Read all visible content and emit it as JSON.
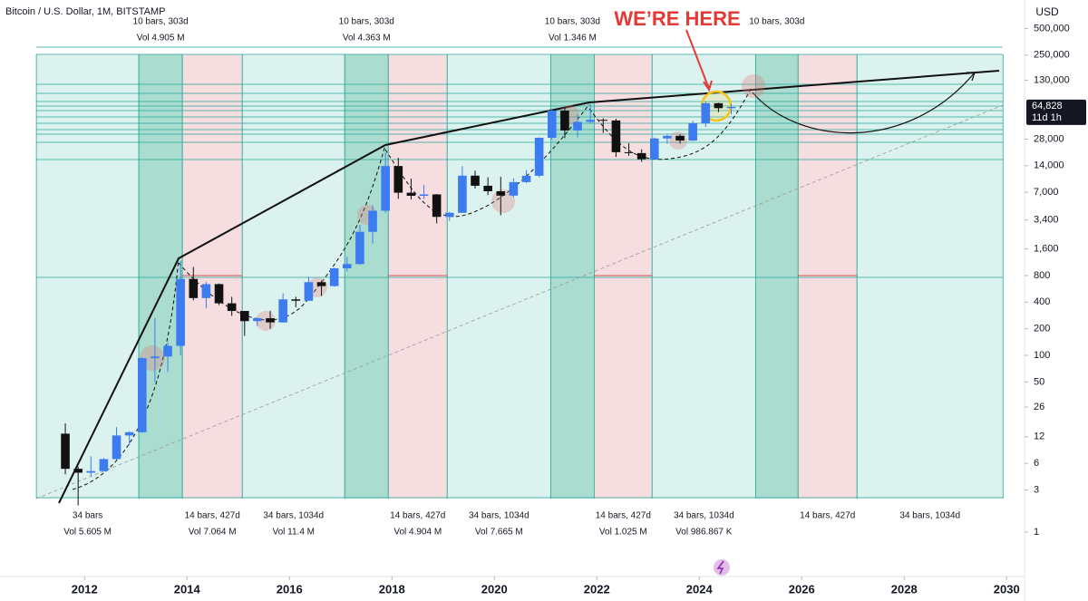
{
  "chart_data": {
    "type": "candlestick",
    "title": "Bitcoin / U.S. Dollar, 1M, BITSTAMP",
    "currency": "USD",
    "annotation": "WE’RE HERE",
    "log_scale": true,
    "grid": false,
    "up_color": "#3d7cf0",
    "down_color": "#111111",
    "xlim": [
      2010.35,
      2030.35
    ],
    "xticks": [
      2012,
      2014,
      2016,
      2018,
      2020,
      2022,
      2024,
      2026,
      2028,
      2030
    ],
    "ylim": [
      0.362,
      1050000
    ],
    "yticks": [
      {
        "value": 500000,
        "label": "500,000"
      },
      {
        "value": 250000,
        "label": "250,000"
      },
      {
        "value": 130000,
        "label": "130,000"
      },
      {
        "value": 28000,
        "label": "28,000"
      },
      {
        "value": 14000,
        "label": "14,000"
      },
      {
        "value": 7000,
        "label": "7,000"
      },
      {
        "value": 3400,
        "label": "3,400"
      },
      {
        "value": 1600,
        "label": "1,600"
      },
      800,
      400,
      200,
      100,
      50,
      26,
      12,
      6,
      3,
      1
    ],
    "last_price": {
      "value": 64828,
      "label": "64,828",
      "countdown": "11d 1h"
    },
    "ranges": [
      {
        "start": 2011.06,
        "end": 2013.06,
        "color": "#dcf2ee",
        "label": "34 bars",
        "volume": "Vol 5.605 M"
      },
      {
        "start": 2013.06,
        "end": 2013.91,
        "color": "#aadccf",
        "label": "10 bars, 303d",
        "volume": "Vol 4.905 M"
      },
      {
        "start": 2013.91,
        "end": 2015.08,
        "color": "#f5dde0",
        "label": "14 bars, 427d",
        "volume": "Vol 7.064 M"
      },
      {
        "start": 2015.08,
        "end": 2017.08,
        "color": "#dcf2ee",
        "label": "34 bars, 1034d",
        "volume": "Vol 11.4 M"
      },
      {
        "start": 2017.08,
        "end": 2017.93,
        "color": "#aadccf",
        "label": "10 bars, 303d",
        "volume": "Vol 4.363 M"
      },
      {
        "start": 2017.93,
        "end": 2019.08,
        "color": "#f5dde0",
        "label": "14 bars, 427d",
        "volume": "Vol 4.904 M"
      },
      {
        "start": 2019.08,
        "end": 2021.1,
        "color": "#dcf2ee",
        "label": "34 bars, 1034d",
        "volume": "Vol 7.665 M"
      },
      {
        "start": 2021.1,
        "end": 2021.95,
        "color": "#aadccf",
        "label": "10 bars, 303d",
        "volume": "Vol 1.346 M"
      },
      {
        "start": 2021.95,
        "end": 2023.08,
        "color": "#f5dde0",
        "label": "14 bars, 427d",
        "volume": "Vol 1.025 M"
      },
      {
        "start": 2023.08,
        "end": 2025.1,
        "color": "#dcf2ee",
        "label": "34 bars, 1034d",
        "volume": "Vol 986.867 K"
      },
      {
        "start": 2025.1,
        "end": 2025.93,
        "color": "#aadccf",
        "label": "10 bars, 303d"
      },
      {
        "start": 2025.93,
        "end": 2027.08,
        "color": "#f5dde0",
        "label": "14 bars, 427d"
      },
      {
        "start": 2027.08,
        "end": 2029.93,
        "color": "#dcf2ee",
        "label": "34 bars, 1034d"
      }
    ],
    "x": [
      2011.625,
      2011.875,
      2012.125,
      2012.375,
      2012.625,
      2012.875,
      2013.125,
      2013.375,
      2013.625,
      2013.875,
      2014.125,
      2014.375,
      2014.625,
      2014.875,
      2015.125,
      2015.375,
      2015.625,
      2015.875,
      2016.125,
      2016.375,
      2016.625,
      2016.875,
      2017.125,
      2017.375,
      2017.625,
      2017.875,
      2018.125,
      2018.375,
      2018.625,
      2018.875,
      2019.125,
      2019.375,
      2019.625,
      2019.875,
      2020.125,
      2020.375,
      2020.625,
      2020.875,
      2021.125,
      2021.375,
      2021.625,
      2021.875,
      2022.125,
      2022.375,
      2022.625,
      2022.875,
      2023.125,
      2023.375,
      2023.625,
      2023.875,
      2024.125,
      2024.375,
      2024.625
    ],
    "open": [
      13,
      5.2,
      4.7,
      4.9,
      6.7,
      12.4,
      13.5,
      93,
      97,
      128,
      732,
      445,
      640,
      388,
      318,
      244,
      263,
      236,
      430,
      415,
      673,
      608,
      966,
      1080,
      2500,
      4330,
      13880,
      6925,
      6390,
      6625,
      3690,
      4100,
      10800,
      8300,
      7190,
      6420,
      9135,
      10780,
      28990,
      58800,
      35040,
      43820,
      46200,
      45500,
      19900,
      19430,
      16540,
      28470,
      30470,
      26970,
      42270,
      71300,
      62700
    ],
    "high": [
      17,
      5.5,
      7.2,
      6.9,
      15.4,
      13.8,
      95,
      266,
      140,
      1163,
      1000,
      680,
      650,
      460,
      318,
      270,
      320,
      505,
      460,
      780,
      700,
      980,
      1300,
      3000,
      5000,
      19666,
      17200,
      10000,
      8500,
      6700,
      4200,
      13880,
      12300,
      10350,
      10500,
      10070,
      12470,
      29300,
      61780,
      64900,
      52900,
      69000,
      48200,
      47500,
      25200,
      21500,
      29200,
      31450,
      31800,
      45000,
      73800,
      72000,
      70000
    ],
    "low": [
      4.5,
      2.0,
      4.3,
      4.9,
      6.6,
      9.6,
      13.3,
      50,
      65,
      100,
      420,
      340,
      370,
      280,
      166,
      215,
      200,
      235,
      350,
      415,
      470,
      600,
      890,
      1060,
      1840,
      4100,
      5900,
      5800,
      5860,
      3120,
      3330,
      4100,
      7710,
      6510,
      3850,
      6150,
      8890,
      10370,
      27730,
      28800,
      29300,
      42000,
      32900,
      17600,
      18150,
      15480,
      16500,
      24770,
      24900,
      26550,
      38500,
      56500,
      53500
    ],
    "close": [
      5.2,
      4.7,
      4.9,
      6.7,
      12.4,
      13.5,
      93,
      97,
      128,
      732,
      445,
      640,
      388,
      318,
      244,
      263,
      236,
      430,
      415,
      673,
      608,
      966,
      1080,
      2500,
      4330,
      13880,
      6925,
      6390,
      6625,
      3690,
      4100,
      10800,
      8300,
      7190,
      6420,
      9135,
      10780,
      28990,
      58800,
      35040,
      43820,
      46200,
      45500,
      19900,
      19430,
      16540,
      28470,
      30470,
      26970,
      42270,
      71300,
      62700,
      64828
    ]
  }
}
